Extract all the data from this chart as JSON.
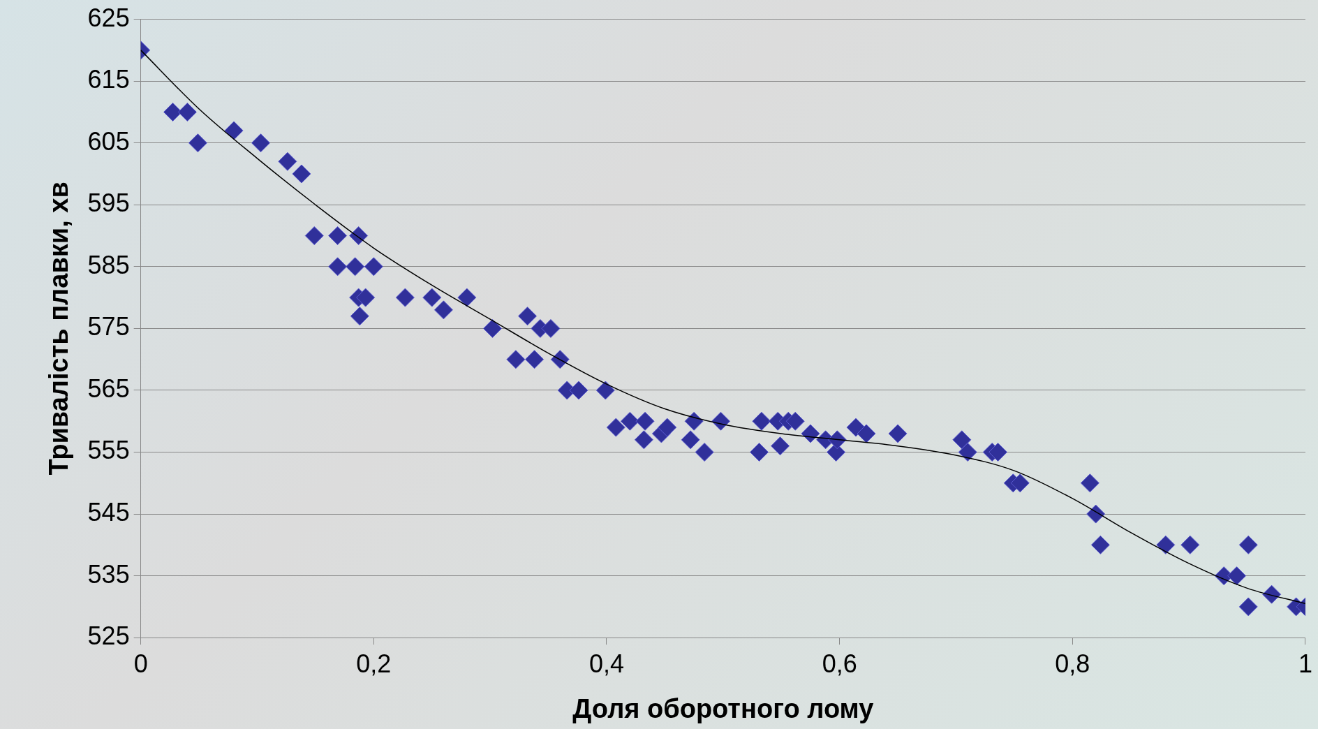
{
  "chart_data": {
    "type": "scatter",
    "xlabel": "Доля оборотного лому",
    "ylabel": "Тривалість плавки, хв",
    "xlim": [
      0,
      1
    ],
    "xticks": [
      0,
      {
        "value": 0.2,
        "label": "0,2"
      },
      {
        "value": 0.4,
        "label": "0,4"
      },
      {
        "value": 0.6,
        "label": "0,6"
      },
      {
        "value": 0.8,
        "label": "0,8"
      },
      1
    ],
    "ylim": [
      525,
      625
    ],
    "yticks": [
      525,
      535,
      545,
      555,
      565,
      575,
      585,
      595,
      605,
      615,
      625
    ],
    "grid": "y",
    "marker": "diamond",
    "series": [
      {
        "type": "scatter",
        "color": "#30309a",
        "x": [
          0,
          0.0275,
          0.04,
          0.049,
          0.08,
          0.103,
          0.126,
          0.138,
          0.149,
          0.169,
          0.187,
          0.169,
          0.184,
          0.2,
          0.187,
          0.193,
          0.188,
          0.227,
          0.25,
          0.26,
          0.28,
          0.302,
          0.322,
          0.332,
          0.338,
          0.343,
          0.352,
          0.36,
          0.366,
          0.376,
          0.399,
          0.408,
          0.42,
          0.433,
          0.432,
          0.447,
          0.452,
          0.472,
          0.475,
          0.484,
          0.498,
          0.531,
          0.533,
          0.547,
          0.549,
          0.556,
          0.562,
          0.575,
          0.588,
          0.597,
          0.598,
          0.614,
          0.623,
          0.65,
          0.705,
          0.71,
          0.731,
          0.736,
          0.749,
          0.755,
          0.815,
          0.82,
          0.824,
          0.88,
          0.901,
          0.93,
          0.941,
          0.951,
          0.951,
          0.971,
          0.992,
          1.0
        ],
        "values": [
          620,
          610,
          610,
          605,
          607,
          605,
          602,
          600,
          590,
          590,
          590,
          585,
          585,
          585,
          580,
          580,
          577,
          580,
          580,
          578,
          580,
          575,
          570,
          577,
          570,
          575,
          575,
          570,
          565,
          565,
          565,
          559,
          560,
          560,
          557,
          558,
          559,
          557,
          560,
          555,
          560,
          555,
          560,
          560,
          556,
          560,
          560,
          558,
          557,
          555,
          557,
          559,
          558,
          558,
          557,
          555,
          555,
          555,
          550,
          550,
          550,
          545,
          540,
          540,
          540,
          535,
          535,
          540,
          530,
          532,
          530,
          530
        ]
      },
      {
        "type": "line",
        "color": "#000000",
        "marker": "none",
        "x": [
          0,
          0.05,
          0.1,
          0.15,
          0.2,
          0.25,
          0.3,
          0.35,
          0.4,
          0.45,
          0.5,
          0.55,
          0.6,
          0.65,
          0.7,
          0.75,
          0.8,
          0.85,
          0.9,
          0.95,
          1.0
        ],
        "values": [
          620,
          610.5,
          602.5,
          595,
          588,
          582,
          576.5,
          571,
          566,
          562,
          559.5,
          558,
          557,
          556,
          554.5,
          552,
          547.5,
          542,
          537,
          533,
          530.5
        ]
      }
    ]
  }
}
